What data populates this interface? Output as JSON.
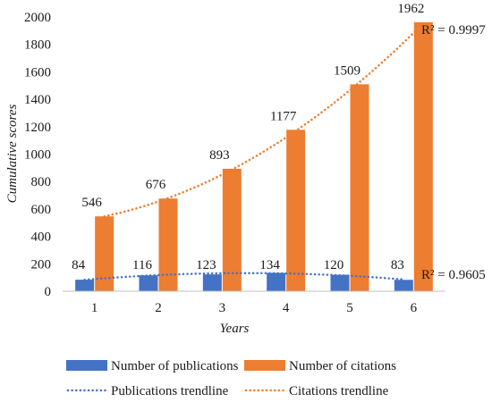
{
  "chart_data": {
    "type": "bar",
    "categories": [
      "1",
      "2",
      "3",
      "4",
      "5",
      "6"
    ],
    "series": [
      {
        "name": "Number of publications",
        "values": [
          84,
          116,
          123,
          134,
          120,
          83
        ],
        "color": "#4472C4"
      },
      {
        "name": "Number of citations",
        "values": [
          546,
          676,
          893,
          1177,
          1509,
          1962
        ],
        "color": "#ED7D31"
      }
    ],
    "trendlines": [
      {
        "name": "Publications trendline",
        "series": "Number of publications",
        "kind": "polynomial",
        "r2_label": "R² = 0.9605",
        "color": "#4472C4"
      },
      {
        "name": "Citations trendline",
        "series": "Number of citations",
        "kind": "polynomial",
        "r2_label": "R² = 0.9997",
        "color": "#ED7D31"
      }
    ],
    "xlabel": "Years",
    "ylabel": "Cumulative scores",
    "ylim": [
      0,
      2000
    ],
    "yticks": [
      0,
      200,
      400,
      600,
      800,
      1000,
      1200,
      1400,
      1600,
      1800,
      2000
    ],
    "grid": false,
    "legend_position": "bottom"
  }
}
